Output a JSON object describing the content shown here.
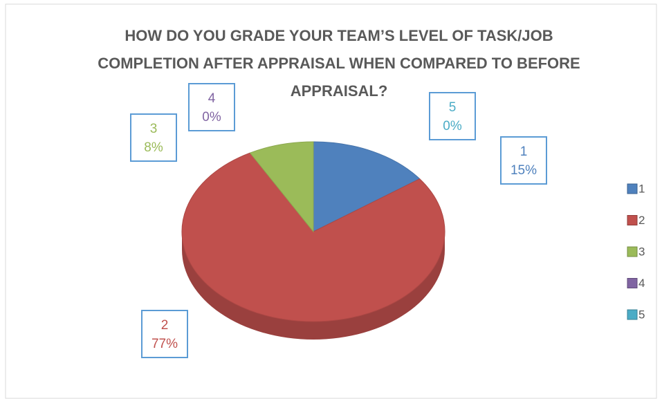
{
  "chart_data": {
    "type": "pie",
    "title": "HOW DO YOU GRADE YOUR TEAM’S LEVEL OF TASK/JOB COMPLETION AFTER APPRAISAL WHEN COMPARED TO BEFORE APPRAISAL?",
    "categories": [
      "1",
      "2",
      "3",
      "4",
      "5"
    ],
    "values": [
      15,
      77,
      8,
      0,
      0
    ],
    "value_labels": [
      "15%",
      "77%",
      "8%",
      "0%",
      "0%"
    ],
    "colors": [
      "#4f81bd",
      "#c0504d",
      "#9bbb59",
      "#8064a2",
      "#4bacc6"
    ],
    "legend": "right"
  }
}
